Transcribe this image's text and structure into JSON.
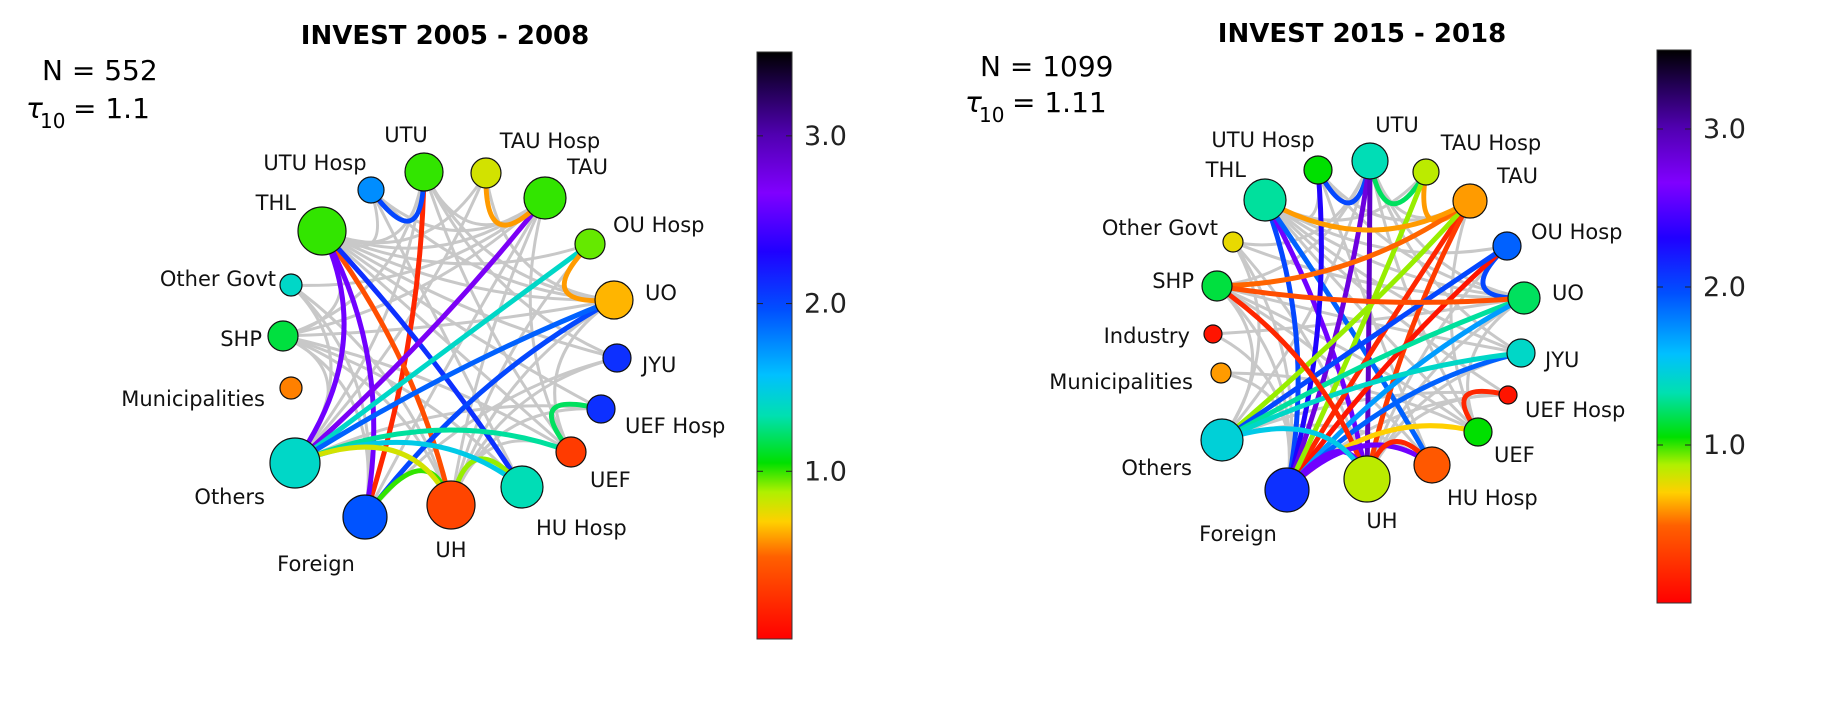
{
  "panels": [
    {
      "title": "INVEST 2005 - 2008",
      "n_label": "N = 552",
      "tau_symbol": "τ",
      "tau_sub": "10",
      "tau_value": "= 1.1",
      "colorbar": {
        "min": 0,
        "max": 3.5,
        "ticks": [
          "1.0",
          "2.0",
          "3.0"
        ],
        "tick_values": [
          1.0,
          2.0,
          3.0
        ]
      },
      "nodes": [
        {
          "id": "UTU",
          "label": "UTU",
          "value": 1.0
        },
        {
          "id": "TAUH",
          "label": "TAU Hosp",
          "value": 0.8
        },
        {
          "id": "TAU",
          "label": "TAU",
          "value": 1.0
        },
        {
          "id": "OUH",
          "label": "OU Hosp",
          "value": 0.95
        },
        {
          "id": "UO",
          "label": "UO",
          "value": 0.65
        },
        {
          "id": "JYU",
          "label": "JYU",
          "value": 2.1
        },
        {
          "id": "UEFH",
          "label": "UEF Hosp",
          "value": 2.1
        },
        {
          "id": "UEF",
          "label": "UEF",
          "value": 0.3
        },
        {
          "id": "HUH",
          "label": "HU Hosp",
          "value": 1.35
        },
        {
          "id": "UH",
          "label": "UH",
          "value": 0.35
        },
        {
          "id": "Foreign",
          "label": "Foreign",
          "value": 1.95
        },
        {
          "id": "Others",
          "label": "Others",
          "value": 1.4
        },
        {
          "id": "Municipalities",
          "label": "Municipalities",
          "value": 0.55
        },
        {
          "id": "SHP",
          "label": "SHP",
          "value": 1.15
        },
        {
          "id": "OtherGovt",
          "label": "Other Govt",
          "value": 1.4
        },
        {
          "id": "THL",
          "label": "THL",
          "value": 1.0
        },
        {
          "id": "UTUH",
          "label": "UTU Hosp",
          "value": 1.75
        }
      ],
      "edges": [
        {
          "from": "UTU",
          "to": "Foreign",
          "value": 0.2
        },
        {
          "from": "THL",
          "to": "UH",
          "value": 0.4
        },
        {
          "from": "THL",
          "to": "HUH",
          "value": 2.1
        },
        {
          "from": "THL",
          "to": "Foreign",
          "value": 2.6
        },
        {
          "from": "THL",
          "to": "Others",
          "value": 2.6
        },
        {
          "from": "TAU",
          "to": "Others",
          "value": 2.7
        },
        {
          "from": "OUH",
          "to": "Others",
          "value": 1.4
        },
        {
          "from": "UO",
          "to": "Foreign",
          "value": 2.0
        },
        {
          "from": "UO",
          "to": "Others",
          "value": 1.9
        },
        {
          "from": "UTUH",
          "to": "UTU",
          "value": 2.0
        },
        {
          "from": "TAUH",
          "to": "TAU",
          "value": 0.6
        },
        {
          "from": "OUH",
          "to": "UO",
          "value": 0.6
        },
        {
          "from": "UEFH",
          "to": "UEF",
          "value": 1.2
        },
        {
          "from": "Foreign",
          "to": "UH",
          "value": 1.0
        },
        {
          "from": "UH",
          "to": "HUH",
          "value": 0.9
        },
        {
          "from": "UEF",
          "to": "Others",
          "value": 1.3
        },
        {
          "from": "HUH",
          "to": "Others",
          "value": 1.5
        },
        {
          "from": "UH",
          "to": "Others",
          "value": 0.8
        }
      ]
    },
    {
      "title": "INVEST 2015 - 2018",
      "n_label": "N = 1099",
      "tau_symbol": "τ",
      "tau_sub": "10",
      "tau_value": "= 1.11",
      "colorbar": {
        "min": 0,
        "max": 3.5,
        "ticks": [
          "1.0",
          "2.0",
          "3.0"
        ],
        "tick_values": [
          1.0,
          2.0,
          3.0
        ]
      },
      "nodes": [
        {
          "id": "UTU",
          "label": "UTU",
          "value": 1.35
        },
        {
          "id": "TAUH",
          "label": "TAU Hosp",
          "value": 0.85
        },
        {
          "id": "TAU",
          "label": "TAU",
          "value": 0.6
        },
        {
          "id": "OUH",
          "label": "OU Hosp",
          "value": 1.9
        },
        {
          "id": "UO",
          "label": "UO",
          "value": 1.2
        },
        {
          "id": "JYU",
          "label": "JYU",
          "value": 1.4
        },
        {
          "id": "UEFH",
          "label": "UEF Hosp",
          "value": 0.1
        },
        {
          "id": "UEF",
          "label": "UEF",
          "value": 1.05
        },
        {
          "id": "HUH",
          "label": "HU Hosp",
          "value": 0.45
        },
        {
          "id": "UH",
          "label": "UH",
          "value": 0.85
        },
        {
          "id": "Foreign",
          "label": "Foreign",
          "value": 2.1
        },
        {
          "id": "Others",
          "label": "Others",
          "value": 1.45
        },
        {
          "id": "Municipalities",
          "label": "Municipalities",
          "value": 0.6
        },
        {
          "id": "Industry",
          "label": "Industry",
          "value": 0.1
        },
        {
          "id": "SHP",
          "label": "SHP",
          "value": 1.15
        },
        {
          "id": "OtherGovt",
          "label": "Other Govt",
          "value": 0.75
        },
        {
          "id": "THL",
          "label": "THL",
          "value": 1.3
        },
        {
          "id": "UTUH",
          "label": "UTU Hosp",
          "value": 1.05
        }
      ],
      "edges": [
        {
          "from": "UTUH",
          "to": "UTU",
          "value": 2.0
        },
        {
          "from": "UTU",
          "to": "TAUH",
          "value": 1.2
        },
        {
          "from": "TAUH",
          "to": "TAU",
          "value": 0.6
        },
        {
          "from": "OUH",
          "to": "UO",
          "value": 2.0
        },
        {
          "from": "UEFH",
          "to": "UEF",
          "value": 0.2
        },
        {
          "from": "THL",
          "to": "Foreign",
          "value": 2.0
        },
        {
          "from": "THL",
          "to": "UH",
          "value": 2.6
        },
        {
          "from": "THL",
          "to": "HUH",
          "value": 1.9
        },
        {
          "from": "UTUH",
          "to": "Foreign",
          "value": 2.3
        },
        {
          "from": "UTU",
          "to": "Foreign",
          "value": 2.8
        },
        {
          "from": "UTU",
          "to": "UH",
          "value": 2.9
        },
        {
          "from": "TAU",
          "to": "Foreign",
          "value": 0.2
        },
        {
          "from": "TAU",
          "to": "Others",
          "value": 0.9
        },
        {
          "from": "TAU",
          "to": "UH",
          "value": 0.3
        },
        {
          "from": "TAUH",
          "to": "Foreign",
          "value": 0.9
        },
        {
          "from": "OUH",
          "to": "Foreign",
          "value": 0.1
        },
        {
          "from": "OUH",
          "to": "Others",
          "value": 2.0
        },
        {
          "from": "UO",
          "to": "Others",
          "value": 1.3
        },
        {
          "from": "UO",
          "to": "Foreign",
          "value": 1.7
        },
        {
          "from": "JYU",
          "to": "Foreign",
          "value": 1.9
        },
        {
          "from": "JYU",
          "to": "Others",
          "value": 1.4
        },
        {
          "from": "SHP",
          "to": "TAU",
          "value": 0.5
        },
        {
          "from": "SHP",
          "to": "UO",
          "value": 0.4
        },
        {
          "from": "SHP",
          "to": "UH",
          "value": 0.2
        },
        {
          "from": "THL",
          "to": "TAU",
          "value": 0.6
        },
        {
          "from": "UEF",
          "to": "Foreign",
          "value": 0.7
        },
        {
          "from": "HUH",
          "to": "Foreign",
          "value": 2.6
        },
        {
          "from": "UH",
          "to": "HUH",
          "value": 0.2
        },
        {
          "from": "Foreign",
          "to": "UH",
          "value": 2.6
        },
        {
          "from": "Others",
          "to": "UH",
          "value": 1.5
        }
      ]
    }
  ]
}
